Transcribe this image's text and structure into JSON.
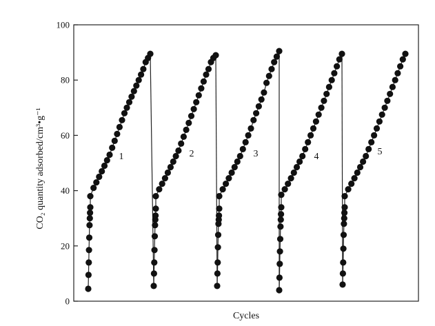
{
  "chart_data": {
    "type": "scatter",
    "title": "",
    "xlabel": "Cycles",
    "ylabel": "CO₂ quantity adsorbed/cm³•g⁻¹",
    "ylim": [
      0,
      100
    ],
    "yticks": [
      "0",
      "20",
      "40",
      "60",
      "80",
      "100"
    ],
    "grid": false,
    "legend": "none",
    "marker_color": "#111111",
    "line_color": "#222222",
    "cycle_labels": [
      "1",
      "2",
      "3",
      "4",
      "5"
    ],
    "series": [
      {
        "label": "1",
        "values": [
          4.5,
          9.5,
          14,
          18.5,
          23,
          27.5,
          30,
          32,
          34,
          38,
          41,
          43,
          45,
          47,
          49,
          51,
          53,
          55.5,
          58,
          60.5,
          63,
          65.5,
          68,
          70,
          72,
          74,
          76,
          78,
          80,
          82,
          84,
          86.5,
          88,
          89.5
        ]
      },
      {
        "label": "2",
        "values": [
          5.5,
          10,
          14,
          18.5,
          23.5,
          27.5,
          29.5,
          31,
          33.5,
          38,
          40.5,
          42.5,
          44.5,
          46.5,
          48.5,
          50.5,
          52.5,
          54.5,
          57,
          59.5,
          62,
          64.5,
          67,
          69.5,
          72,
          74.5,
          77,
          79.5,
          82,
          84,
          86.5,
          88,
          89
        ]
      },
      {
        "label": "3",
        "values": [
          5.5,
          10,
          14,
          19.5,
          24,
          28,
          29.5,
          31,
          33.5,
          38,
          40.5,
          42.5,
          44.5,
          46.5,
          48.5,
          50.5,
          52.5,
          55,
          57.5,
          60,
          62.5,
          65.5,
          68,
          70.5,
          73,
          75.5,
          79,
          81.5,
          84,
          86.5,
          88.5,
          90.5
        ]
      },
      {
        "label": "4",
        "values": [
          4,
          8.5,
          13.5,
          18,
          22.5,
          27,
          29.5,
          31.5,
          34,
          38.5,
          40.5,
          42.5,
          44.5,
          46.5,
          48.5,
          50.5,
          52.5,
          55,
          57.5,
          60,
          62.5,
          65,
          67.5,
          70,
          72.5,
          75,
          77.5,
          80,
          82.5,
          85,
          87.5,
          89.5
        ]
      },
      {
        "label": "5",
        "values": [
          6,
          10,
          14,
          19,
          24,
          28,
          30,
          32,
          34,
          38,
          40.5,
          42.5,
          44.5,
          46.5,
          48.5,
          50.5,
          52.5,
          55,
          57.5,
          60,
          62.5,
          65,
          67.5,
          70,
          72.5,
          75,
          77.5,
          80,
          82.5,
          85,
          87.5,
          89.5
        ]
      }
    ]
  }
}
